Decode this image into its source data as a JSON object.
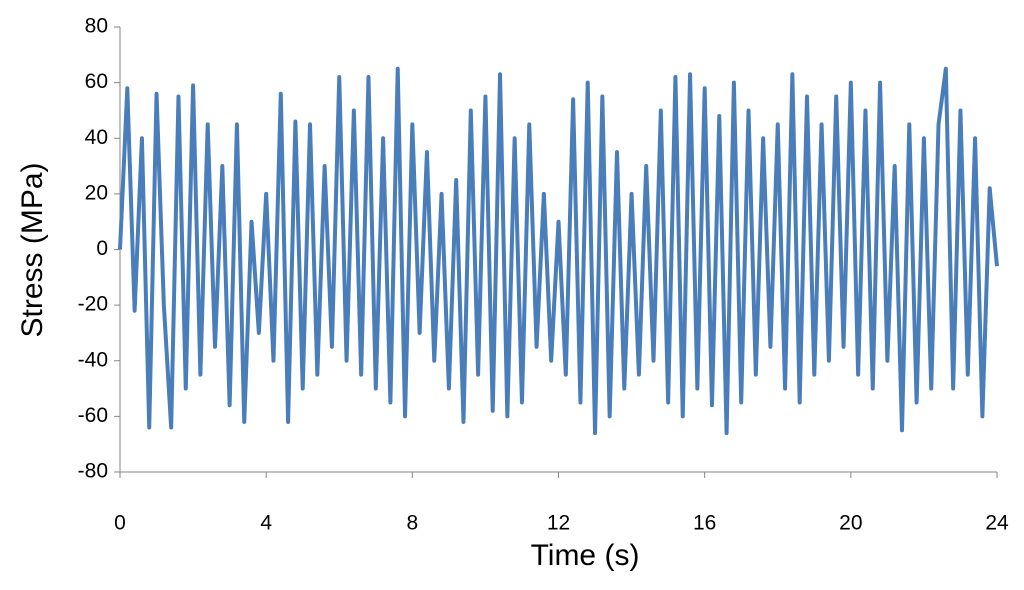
{
  "chart_data": {
    "type": "line",
    "x_label": "Time (s)",
    "y_label": "Stress (MPa)",
    "x": [
      0,
      0.2,
      0.4,
      0.6,
      0.8,
      1,
      1.2,
      1.4,
      1.6,
      1.8,
      2,
      2.2,
      2.4,
      2.6,
      2.8,
      3,
      3.2,
      3.4,
      3.6,
      3.8,
      4,
      4.2,
      4.4,
      4.6,
      4.8,
      5,
      5.2,
      5.4,
      5.6,
      5.8,
      6,
      6.2,
      6.4,
      6.6,
      6.8,
      7,
      7.2,
      7.4,
      7.6,
      7.8,
      8,
      8.2,
      8.4,
      8.6,
      8.8,
      9,
      9.2,
      9.4,
      9.6,
      9.8,
      10,
      10.2,
      10.4,
      10.6,
      10.8,
      11,
      11.2,
      11.4,
      11.6,
      11.8,
      12,
      12.2,
      12.4,
      12.6,
      12.8,
      13,
      13.2,
      13.4,
      13.6,
      13.8,
      14,
      14.2,
      14.4,
      14.6,
      14.8,
      15,
      15.2,
      15.4,
      15.6,
      15.8,
      16,
      16.2,
      16.4,
      16.6,
      16.8,
      17,
      17.2,
      17.4,
      17.6,
      17.8,
      18,
      18.2,
      18.4,
      18.6,
      18.8,
      19,
      19.2,
      19.4,
      19.6,
      19.8,
      20,
      20.2,
      20.4,
      20.6,
      20.8,
      21,
      21.2,
      21.4,
      21.6,
      21.8,
      22,
      22.2,
      22.4,
      22.6,
      22.8,
      23,
      23.2,
      23.4,
      23.6,
      23.8,
      24
    ],
    "series": [
      {
        "name": "Stress",
        "color": "#4a7ebb",
        "values": [
          0,
          58,
          -22,
          40,
          -64,
          56,
          -20,
          -64,
          55,
          -50,
          59,
          -45,
          45,
          -35,
          30,
          -56,
          45,
          -62,
          10,
          -30,
          20,
          -40,
          56,
          -62,
          46,
          -50,
          45,
          -45,
          30,
          -35,
          62,
          -40,
          50,
          -45,
          62,
          -50,
          40,
          -55,
          65,
          -60,
          45,
          -30,
          35,
          -40,
          20,
          -50,
          25,
          -62,
          50,
          -45,
          55,
          -58,
          63,
          -60,
          40,
          -55,
          45,
          -35,
          20,
          -40,
          10,
          -45,
          54,
          -55,
          60,
          -66,
          55,
          -60,
          35,
          -50,
          20,
          -45,
          30,
          -40,
          50,
          -55,
          62,
          -60,
          63,
          -50,
          58,
          -56,
          48,
          -66,
          60,
          -55,
          50,
          -45,
          40,
          -35,
          45,
          -50,
          63,
          -55,
          55,
          -45,
          45,
          -40,
          55,
          -35,
          60,
          -45,
          50,
          -50,
          60,
          -40,
          30,
          -65,
          45,
          -55,
          40,
          -50,
          45,
          65,
          -50,
          50,
          -45,
          40,
          -60,
          22,
          -6
        ]
      }
    ],
    "xlim": [
      0,
      24
    ],
    "xticks": [
      0,
      4,
      8,
      12,
      16,
      20,
      24
    ],
    "ylim": [
      -80,
      80
    ],
    "yticks": [
      -80,
      -60,
      -40,
      -20,
      0,
      20,
      40,
      60,
      80
    ]
  }
}
